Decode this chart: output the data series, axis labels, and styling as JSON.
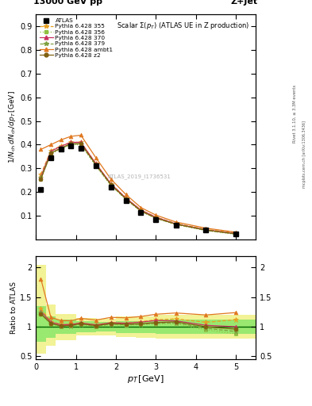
{
  "title_top": "13000 GeV pp",
  "title_right": "Z+Jet",
  "main_title": "Scalar Σ(p_{T}) (ATLAS UE in Z production)",
  "watermark": "ATLAS_2019_I1736531",
  "right_label": "Rivet 3.1.10, ≥ 3.3M events",
  "right_label2": "mcplots.cern.ch [arXiv:1306.3436]",
  "ylabel_main": "1/N_{ch} dN_{ch}/dp_{T} [GeV]",
  "ylabel_ratio": "Ratio to ATLAS",
  "xlabel": "p_{T} [GeV]",
  "xlim": [
    0,
    5.5
  ],
  "ylim_main": [
    0.0,
    0.95
  ],
  "ylim_ratio": [
    0.45,
    2.2
  ],
  "yticks_main": [
    0.1,
    0.2,
    0.3,
    0.4,
    0.5,
    0.6,
    0.7,
    0.8,
    0.9
  ],
  "yticks_ratio": [
    0.5,
    1.0,
    1.5,
    2.0
  ],
  "xticks": [
    0,
    1,
    2,
    3,
    4,
    5
  ],
  "atlas_x": [
    0.125,
    0.375,
    0.625,
    0.875,
    1.125,
    1.5,
    1.875,
    2.25,
    2.625,
    3.0,
    3.5,
    4.25,
    5.0
  ],
  "atlas_y": [
    0.21,
    0.345,
    0.38,
    0.395,
    0.385,
    0.31,
    0.22,
    0.165,
    0.115,
    0.085,
    0.06,
    0.04,
    0.025
  ],
  "p355_x": [
    0.125,
    0.375,
    0.625,
    0.875,
    1.125,
    1.5,
    1.875,
    2.25,
    2.625,
    3.0,
    3.5,
    4.25,
    5.0
  ],
  "p355_y": [
    0.275,
    0.375,
    0.395,
    0.41,
    0.41,
    0.32,
    0.235,
    0.175,
    0.125,
    0.095,
    0.068,
    0.043,
    0.028
  ],
  "p355_color": "#e8a020",
  "p355_style": "--",
  "p355_marker": "*",
  "p355_label": "Pythia 6.428 355",
  "p356_x": [
    0.125,
    0.375,
    0.625,
    0.875,
    1.125,
    1.5,
    1.875,
    2.25,
    2.625,
    3.0,
    3.5,
    4.25,
    5.0
  ],
  "p356_y": [
    0.255,
    0.36,
    0.382,
    0.4,
    0.4,
    0.31,
    0.228,
    0.169,
    0.119,
    0.089,
    0.063,
    0.038,
    0.022
  ],
  "p356_color": "#90c040",
  "p356_style": ":",
  "p356_marker": "s",
  "p356_label": "Pythia 6.428 356",
  "p370_x": [
    0.125,
    0.375,
    0.625,
    0.875,
    1.125,
    1.5,
    1.875,
    2.25,
    2.625,
    3.0,
    3.5,
    4.25,
    5.0
  ],
  "p370_y": [
    0.265,
    0.372,
    0.393,
    0.41,
    0.41,
    0.32,
    0.235,
    0.175,
    0.124,
    0.094,
    0.066,
    0.041,
    0.025
  ],
  "p370_color": "#c83060",
  "p370_style": "-",
  "p370_marker": "^",
  "p370_label": "Pythia 6.428 370",
  "p379_x": [
    0.125,
    0.375,
    0.625,
    0.875,
    1.125,
    1.5,
    1.875,
    2.25,
    2.625,
    3.0,
    3.5,
    4.25,
    5.0
  ],
  "p379_y": [
    0.26,
    0.365,
    0.385,
    0.402,
    0.402,
    0.313,
    0.23,
    0.171,
    0.12,
    0.09,
    0.064,
    0.039,
    0.023
  ],
  "p379_color": "#80a040",
  "p379_style": "--",
  "p379_marker": "*",
  "p379_label": "Pythia 6.428 379",
  "pambt1_x": [
    0.125,
    0.375,
    0.625,
    0.875,
    1.125,
    1.5,
    1.875,
    2.25,
    2.625,
    3.0,
    3.5,
    4.25,
    5.0
  ],
  "pambt1_y": [
    0.38,
    0.4,
    0.42,
    0.435,
    0.44,
    0.345,
    0.255,
    0.19,
    0.135,
    0.103,
    0.074,
    0.048,
    0.031
  ],
  "pambt1_color": "#e07820",
  "pambt1_style": "-",
  "pambt1_marker": "^",
  "pambt1_label": "Pythia 6.428 ambt1",
  "pz2_x": [
    0.125,
    0.375,
    0.625,
    0.875,
    1.125,
    1.5,
    1.875,
    2.25,
    2.625,
    3.0,
    3.5,
    4.25,
    5.0
  ],
  "pz2_y": [
    0.255,
    0.365,
    0.385,
    0.405,
    0.405,
    0.316,
    0.232,
    0.172,
    0.121,
    0.091,
    0.065,
    0.04,
    0.024
  ],
  "pz2_color": "#806010",
  "pz2_style": "-",
  "pz2_marker": "o",
  "pz2_label": "Pythia 6.428 z2",
  "band_green_color": "#50e050",
  "band_green_alpha": 0.55,
  "band_green_x": [
    0.0,
    0.25,
    0.5,
    0.75,
    1.25,
    1.75,
    2.25,
    2.75,
    3.25,
    3.75,
    4.5,
    5.5
  ],
  "band_green_lo": [
    0.75,
    0.82,
    0.88,
    0.9,
    0.92,
    0.92,
    0.92,
    0.92,
    0.92,
    0.92,
    0.92,
    0.92
  ],
  "band_green_hi": [
    1.35,
    1.18,
    1.12,
    1.1,
    1.08,
    1.08,
    1.08,
    1.15,
    1.15,
    1.15,
    1.15,
    1.15
  ],
  "band_yellow_color": "#e8e840",
  "band_yellow_alpha": 0.55,
  "band_yellow_x": [
    0.0,
    0.25,
    0.5,
    0.75,
    1.25,
    1.75,
    2.25,
    2.75,
    3.25,
    3.75,
    4.5,
    5.5
  ],
  "band_yellow_lo": [
    0.55,
    0.7,
    0.78,
    0.82,
    0.86,
    0.86,
    0.82,
    0.82,
    0.82,
    0.82,
    0.82,
    0.82
  ],
  "band_yellow_hi": [
    2.05,
    1.38,
    1.22,
    1.18,
    1.14,
    1.14,
    1.18,
    1.25,
    1.25,
    1.25,
    1.25,
    1.25
  ]
}
